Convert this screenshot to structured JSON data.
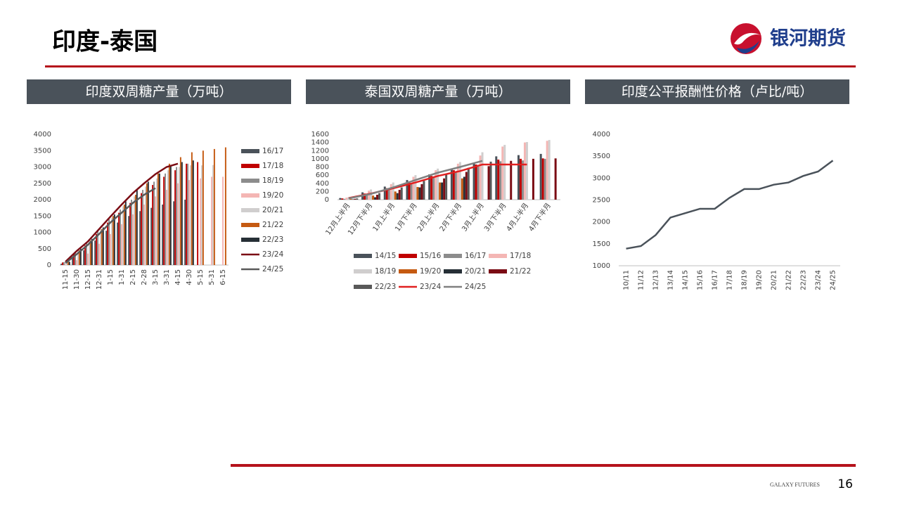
{
  "header": {
    "title": "印度-泰国",
    "logo": "银河期货"
  },
  "footer": {
    "brand": "GALAXY FUTURES",
    "page": "16"
  },
  "chart_data": [
    {
      "type": "bar",
      "title": "印度双周糖产量（万吨）",
      "categories": [
        "11-15",
        "11-30",
        "12-15",
        "12-31",
        "1-15",
        "1-31",
        "2-15",
        "2-28",
        "3-15",
        "3-31",
        "4-15",
        "4-30",
        "5-15",
        "5-31",
        "6-15"
      ],
      "ylim": [
        0,
        4000
      ],
      "yticks": [
        0,
        500,
        1000,
        1500,
        2000,
        2500,
        3000,
        3500,
        4000
      ],
      "grid": false,
      "legend": "right",
      "series": [
        {
          "name": "16/17",
          "color": "#4a525a",
          "values": [
            40,
            250,
            450,
            750,
            1050,
            1300,
            1500,
            1650,
            1750,
            1850,
            1950,
            2000,
            null,
            null,
            null
          ]
        },
        {
          "name": "17/18",
          "color": "#c00000",
          "values": [
            80,
            350,
            600,
            950,
            1300,
            1600,
            1900,
            2200,
            2450,
            2700,
            2900,
            3100,
            3150,
            null,
            null
          ]
        },
        {
          "name": "18/19",
          "color": "#8c8c8c",
          "values": [
            90,
            400,
            700,
            1050,
            1400,
            1700,
            2000,
            2300,
            2550,
            2800,
            3000,
            3100,
            null,
            null,
            null
          ]
        },
        {
          "name": "19/20",
          "color": "#f4b6b4",
          "values": [
            30,
            150,
            350,
            650,
            950,
            1250,
            1550,
            1850,
            2100,
            2300,
            2500,
            2600,
            2650,
            2700,
            2700
          ]
        },
        {
          "name": "20/21",
          "color": "#d0cece",
          "values": [
            100,
            450,
            750,
            1100,
            1450,
            1800,
            2100,
            2400,
            2650,
            2900,
            3000,
            3050,
            3050,
            3060,
            null
          ]
        },
        {
          "name": "21/22",
          "color": "#c55a11",
          "values": [
            100,
            450,
            750,
            1100,
            1500,
            1850,
            2150,
            2500,
            2800,
            3100,
            3300,
            3450,
            3500,
            3550,
            3600
          ]
        },
        {
          "name": "22/23",
          "color": "#262f36",
          "values": [
            100,
            500,
            800,
            1150,
            1550,
            1950,
            2300,
            2550,
            2800,
            3050,
            3150,
            3200,
            null,
            null,
            null
          ]
        },
        {
          "name": "23/24",
          "color": "#7b0c14",
          "type": "line",
          "values": [
            100,
            430,
            720,
            1100,
            1480,
            1850,
            2200,
            2500,
            2780,
            3000,
            3100,
            null,
            null,
            null,
            null
          ]
        },
        {
          "name": "24/25",
          "color": "#595959",
          "type": "line",
          "values": [
            60,
            330,
            620,
            950,
            1300,
            1600,
            1900,
            2150,
            2350,
            null,
            null,
            null,
            null,
            null,
            null
          ]
        }
      ]
    },
    {
      "type": "bar",
      "title": "泰国双周糖产量（万吨）",
      "categories": [
        "12月上半月",
        "12月下半月",
        "1月上半月",
        "1月下半月",
        "2月上半月",
        "2月下半月",
        "3月上半月",
        "3月下半月",
        "4月上半月",
        "4月下半月"
      ],
      "ylim": [
        0,
        1600
      ],
      "yticks": [
        0,
        200,
        400,
        600,
        800,
        1000,
        1200,
        1400,
        1600
      ],
      "grid": false,
      "legend": "bottom",
      "series": [
        {
          "name": "14/15",
          "color": "#4a525a",
          "values": [
            40,
            180,
            320,
            480,
            620,
            760,
            900,
            1060,
            1090,
            1120
          ]
        },
        {
          "name": "15/16",
          "color": "#c00000",
          "values": [
            30,
            150,
            280,
            430,
            580,
            720,
            860,
            980,
            1000,
            1010
          ]
        },
        {
          "name": "16/17",
          "color": "#8c8c8c",
          "values": [
            20,
            120,
            250,
            400,
            540,
            680,
            810,
            940,
            960,
            1000
          ]
        },
        {
          "name": "17/18",
          "color": "#f4b6b4",
          "values": [
            50,
            220,
            380,
            560,
            720,
            880,
            1080,
            1300,
            1400,
            1440
          ]
        },
        {
          "name": "18/19",
          "color": "#d0cece",
          "values": [
            60,
            250,
            420,
            600,
            760,
            920,
            1160,
            1340,
            1410,
            1460
          ]
        },
        {
          "name": "19/20",
          "color": "#c55a11",
          "values": [
            20,
            100,
            200,
            310,
            420,
            520,
            null,
            null,
            null,
            null
          ]
        },
        {
          "name": "20/21",
          "color": "#262f36",
          "values": [
            10,
            60,
            160,
            300,
            420,
            560,
            null,
            null,
            null,
            null
          ]
        },
        {
          "name": "21/22",
          "color": "#7b0c14",
          "values": [
            20,
            120,
            240,
            380,
            520,
            680,
            820,
            950,
            1000,
            1010
          ]
        },
        {
          "name": "22/23",
          "color": "#595959",
          "values": [
            30,
            160,
            300,
            460,
            620,
            780,
            930,
            null,
            null,
            null
          ]
        },
        {
          "name": "23/24",
          "color": "#e02020",
          "type": "line",
          "values": [
            40,
            150,
            280,
            420,
            580,
            700,
            860,
            860,
            860,
            null
          ]
        },
        {
          "name": "24/25",
          "color": "#808080",
          "type": "line",
          "values": [
            30,
            140,
            300,
            480,
            660,
            800,
            950,
            null,
            null,
            null
          ]
        }
      ]
    },
    {
      "type": "line",
      "title": "印度公平报酬性价格（卢比/吨）",
      "categories": [
        "10/11",
        "11/12",
        "12/13",
        "13/14",
        "14/15",
        "15/16",
        "16/17",
        "17/18",
        "18/19",
        "19/20",
        "20/21",
        "21/22",
        "22/23",
        "23/24",
        "24/25"
      ],
      "values": [
        1390,
        1450,
        1700,
        2100,
        2200,
        2300,
        2300,
        2550,
        2750,
        2750,
        2850,
        2900,
        3050,
        3150,
        3400
      ],
      "color": "#4a525a",
      "ylim": [
        1000,
        4000
      ],
      "yticks": [
        1000,
        1500,
        2000,
        2500,
        3000,
        3500,
        4000
      ],
      "grid": false
    }
  ]
}
